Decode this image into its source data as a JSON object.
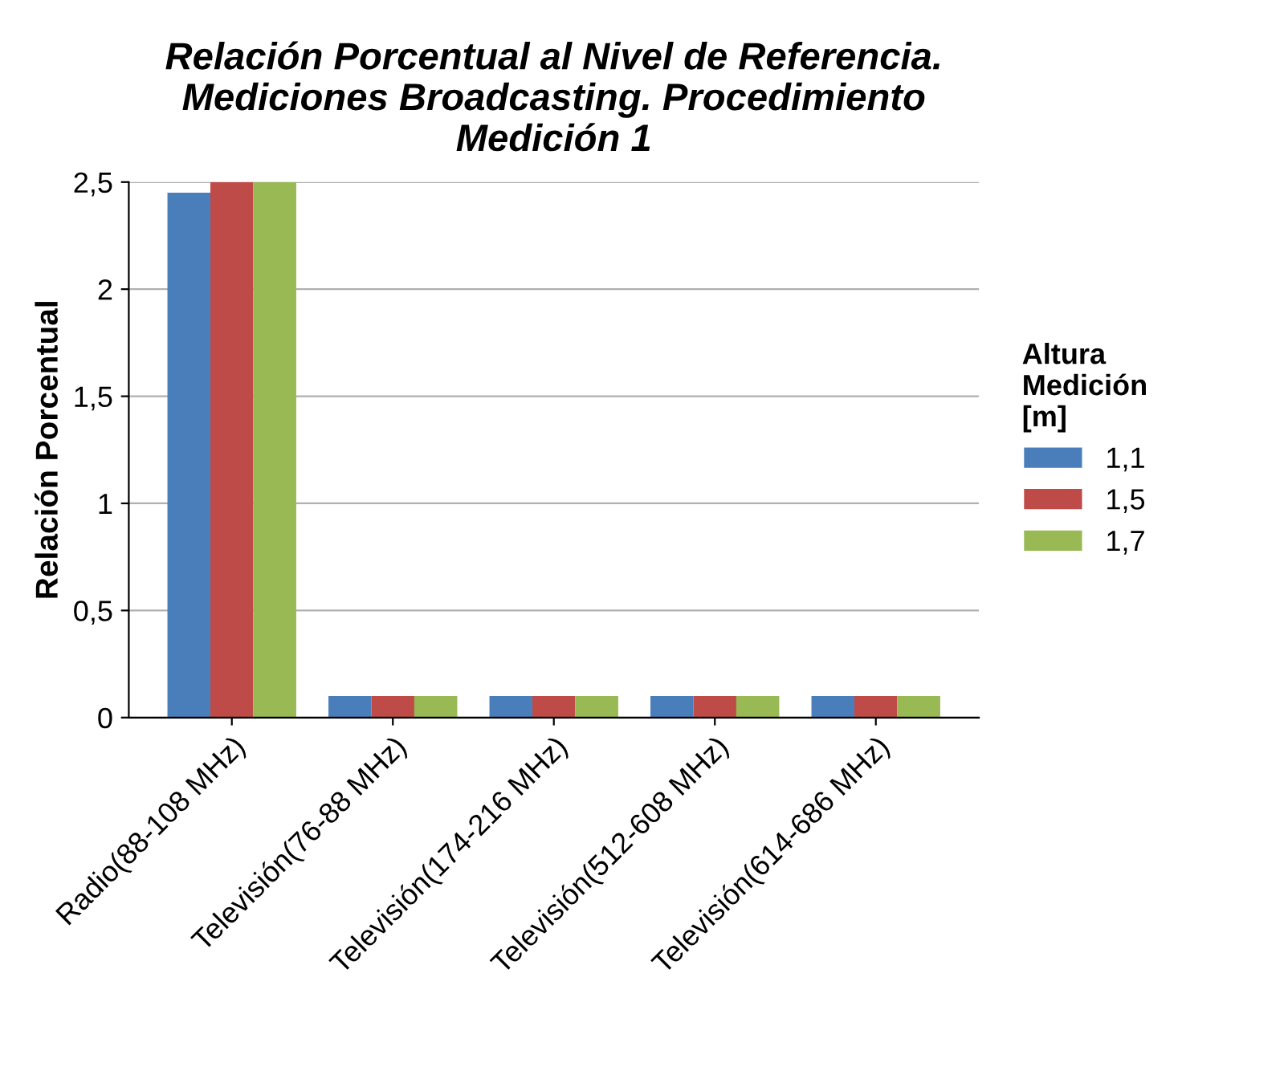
{
  "chart_data": {
    "type": "bar",
    "title": "Relación Porcentual al Nivel de Referencia.\nMediciones Broadcasting. Procedimiento\nMedición 1",
    "ylabel": "Relación Porcentual",
    "legend_title": "Altura\nMedición\n[m]",
    "categories": [
      "Radio(88-108 MHz)",
      "Televisión(76-88 MHz)",
      "Televisión(174-216 MHz)",
      "Televisión(512-608 MHz)",
      "Televisión(614-686 MHz)"
    ],
    "series": [
      {
        "name": "1,1",
        "color": "#4a7ebb",
        "values": [
          2.45,
          0.1,
          0.1,
          0.1,
          0.1
        ]
      },
      {
        "name": "1,5",
        "color": "#be4b48",
        "values": [
          2.5,
          0.1,
          0.1,
          0.1,
          0.1
        ]
      },
      {
        "name": "1,7",
        "color": "#98b954",
        "values": [
          2.5,
          0.1,
          0.1,
          0.1,
          0.1
        ]
      }
    ],
    "ylim": [
      0,
      2.5
    ],
    "yticks": [
      0,
      {
        "value": 0.5,
        "label": "0,5"
      },
      1,
      {
        "value": 1.5,
        "label": "1,5"
      },
      2,
      {
        "value": 2.5,
        "label": "2,5"
      }
    ],
    "grid": "y",
    "legend": "right"
  }
}
